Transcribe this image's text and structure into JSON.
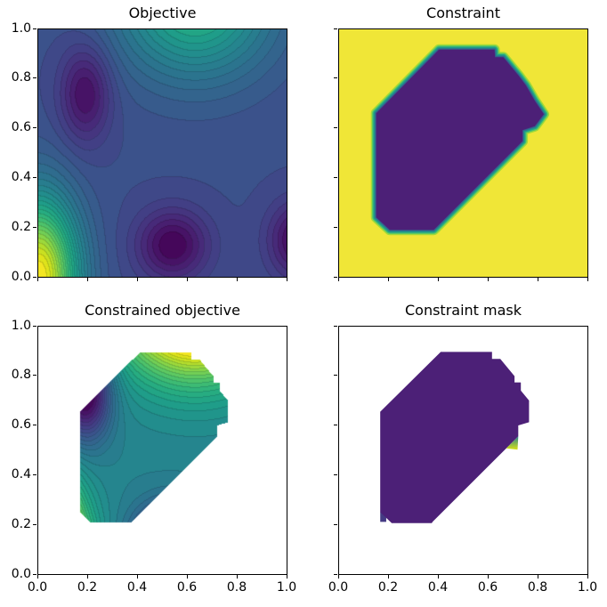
{
  "figure": {
    "background": "#ffffff"
  },
  "viridis_stops": [
    "#440154",
    "#48186a",
    "#472d7b",
    "#424086",
    "#3b528b",
    "#33638d",
    "#2c728e",
    "#26828e",
    "#21918c",
    "#1fa088",
    "#28ae80",
    "#3fbc73",
    "#5ec962",
    "#84d44b",
    "#addc30",
    "#d8e219",
    "#fde725"
  ],
  "axis": {
    "xlim": [
      0,
      1
    ],
    "ylim": [
      0,
      1
    ],
    "tick_values": [
      0,
      0.2,
      0.4,
      0.6,
      0.8,
      1.0
    ],
    "tick_labels": [
      "0.0",
      "0.2",
      "0.4",
      "0.6",
      "0.8",
      "1.0"
    ]
  },
  "chart_data": [
    {
      "id": "objective",
      "type": "contour",
      "title": "Objective",
      "colormap": "viridis",
      "n_levels": 30,
      "grid": false,
      "show_xticklabels": false,
      "show_yticklabels": true,
      "xlim": [
        0,
        1
      ],
      "ylim": [
        0,
        1
      ],
      "field_gaussians": [
        {
          "a": 2.0,
          "x": 0.0,
          "y": 0.0,
          "sx": 0.16,
          "sy": 0.32
        },
        {
          "a": 1.1,
          "x": 0.63,
          "y": 1.12,
          "sx": 0.3,
          "sy": 0.3
        },
        {
          "a": -0.55,
          "x": 0.19,
          "y": 0.74,
          "sx": 0.1,
          "sy": 0.19
        },
        {
          "a": -0.62,
          "x": 0.54,
          "y": 0.13,
          "sx": 0.14,
          "sy": 0.14
        },
        {
          "a": -0.62,
          "x": 1.05,
          "y": 0.15,
          "sx": 0.12,
          "sy": 0.15
        }
      ],
      "features": {
        "global_max_at": [
          0.0,
          0.0
        ],
        "secondary_max_at": [
          0.63,
          1.0
        ],
        "local_minima_at": [
          [
            0.19,
            0.76
          ],
          [
            0.54,
            0.14
          ],
          [
            1.0,
            0.16
          ]
        ]
      }
    },
    {
      "id": "constraint",
      "type": "heatmap",
      "title": "Constraint",
      "colormap": "viridis",
      "show_xticklabels": false,
      "show_yticklabels": false,
      "xlim": [
        0,
        1
      ],
      "ylim": [
        0,
        1
      ],
      "value_inside": 0,
      "value_outside": 1,
      "infeasible_color": "#f0e637",
      "feasible_color": "#4c2077",
      "boundary_colors": [
        "#a0da39",
        "#4ac16d",
        "#1fa187",
        "#277f8e",
        "#365c8d"
      ],
      "boundary_widths": [
        12,
        9,
        6.5,
        4,
        2
      ],
      "feasible_polygon": [
        [
          0.403,
          0.915
        ],
        [
          0.625,
          0.915
        ],
        [
          0.627,
          0.885
        ],
        [
          0.66,
          0.885
        ],
        [
          0.722,
          0.81
        ],
        [
          0.75,
          0.772
        ],
        [
          0.786,
          0.71
        ],
        [
          0.822,
          0.656
        ],
        [
          0.786,
          0.608
        ],
        [
          0.737,
          0.592
        ],
        [
          0.737,
          0.548
        ],
        [
          0.39,
          0.2
        ],
        [
          0.382,
          0.192
        ],
        [
          0.206,
          0.192
        ],
        [
          0.152,
          0.242
        ],
        [
          0.152,
          0.66
        ]
      ]
    },
    {
      "id": "constrained_objective",
      "type": "contour",
      "title": "Constrained objective",
      "colormap": "viridis",
      "n_levels": 30,
      "renormalized_to_mask": true,
      "show_xticklabels": true,
      "show_yticklabels": true,
      "xlim": [
        0,
        1
      ],
      "ylim": [
        0,
        1
      ],
      "field_gaussians": [
        {
          "a": 2.0,
          "x": 0.0,
          "y": 0.0,
          "sx": 0.16,
          "sy": 0.32
        },
        {
          "a": 1.1,
          "x": 0.63,
          "y": 1.12,
          "sx": 0.3,
          "sy": 0.3
        },
        {
          "a": -0.55,
          "x": 0.19,
          "y": 0.74,
          "sx": 0.1,
          "sy": 0.19
        },
        {
          "a": -0.62,
          "x": 0.54,
          "y": 0.13,
          "sx": 0.14,
          "sy": 0.14
        },
        {
          "a": -0.62,
          "x": 1.05,
          "y": 0.15,
          "sx": 0.12,
          "sy": 0.15
        }
      ],
      "mask_polygon": [
        [
          0.41,
          0.895
        ],
        [
          0.615,
          0.895
        ],
        [
          0.615,
          0.867
        ],
        [
          0.648,
          0.867
        ],
        [
          0.705,
          0.798
        ],
        [
          0.705,
          0.772
        ],
        [
          0.73,
          0.772
        ],
        [
          0.73,
          0.74
        ],
        [
          0.763,
          0.7
        ],
        [
          0.763,
          0.613
        ],
        [
          0.72,
          0.6
        ],
        [
          0.72,
          0.556
        ],
        [
          0.378,
          0.214
        ],
        [
          0.374,
          0.208
        ],
        [
          0.214,
          0.208
        ],
        [
          0.168,
          0.252
        ],
        [
          0.168,
          0.655
        ]
      ]
    },
    {
      "id": "constraint_mask",
      "type": "mask",
      "title": "Constraint mask",
      "show_xticklabels": true,
      "show_yticklabels": false,
      "xlim": [
        0,
        1
      ],
      "ylim": [
        0,
        1
      ],
      "mask_color": "#4c2077",
      "background_color": "#ffffff",
      "mask_polygon": [
        [
          0.41,
          0.895
        ],
        [
          0.615,
          0.895
        ],
        [
          0.615,
          0.867
        ],
        [
          0.648,
          0.867
        ],
        [
          0.705,
          0.798
        ],
        [
          0.705,
          0.772
        ],
        [
          0.73,
          0.772
        ],
        [
          0.73,
          0.74
        ],
        [
          0.763,
          0.7
        ],
        [
          0.763,
          0.613
        ],
        [
          0.72,
          0.6
        ],
        [
          0.72,
          0.556
        ],
        [
          0.378,
          0.214
        ],
        [
          0.374,
          0.208
        ],
        [
          0.214,
          0.208
        ],
        [
          0.168,
          0.252
        ],
        [
          0.168,
          0.655
        ]
      ],
      "artifacts": {
        "speck": {
          "points": [
            [
              0.72,
              0.556
            ],
            [
              0.672,
              0.508
            ],
            [
              0.717,
              0.503
            ]
          ],
          "gradient_top": "#26828e",
          "gradient_bottom": "#d8e219"
        },
        "patches": [
          {
            "x": 0.703,
            "y": 0.736,
            "w": 0.027,
            "h": 0.036,
            "color": "#453781"
          },
          {
            "x": 0.168,
            "y": 0.213,
            "w": 0.024,
            "h": 0.04,
            "color": "#443a83"
          }
        ]
      }
    }
  ]
}
